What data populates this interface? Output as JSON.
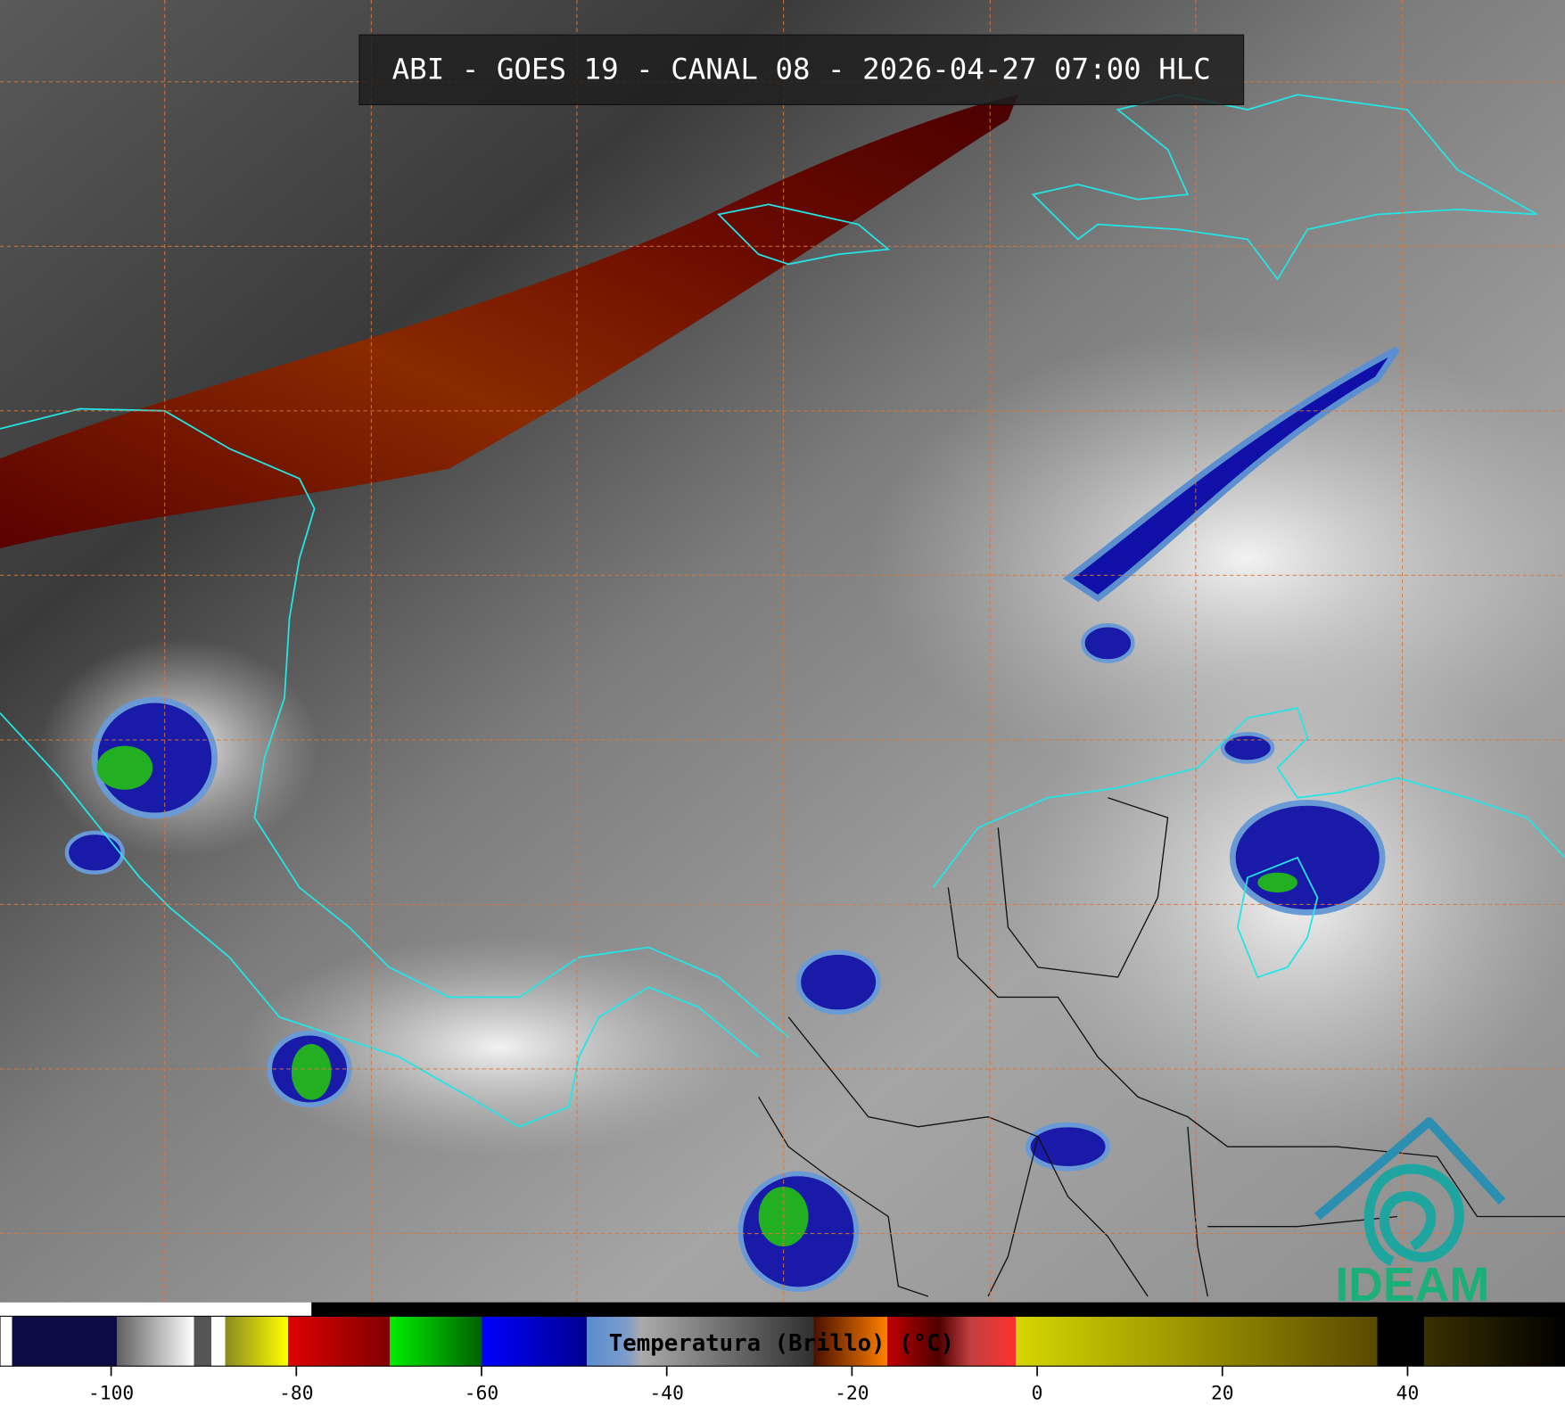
{
  "title": "ABI - GOES 19 - CANAL 08 - 2026-04-27 07:00 HLC",
  "logo": "IDEAM",
  "colorbar": {
    "label": "Temperatura (Brillo) (°C)",
    "lim": [
      -112,
      57
    ],
    "ticks": [
      -100,
      -80,
      -60,
      -40,
      -20,
      0,
      20,
      40
    ]
  }
}
